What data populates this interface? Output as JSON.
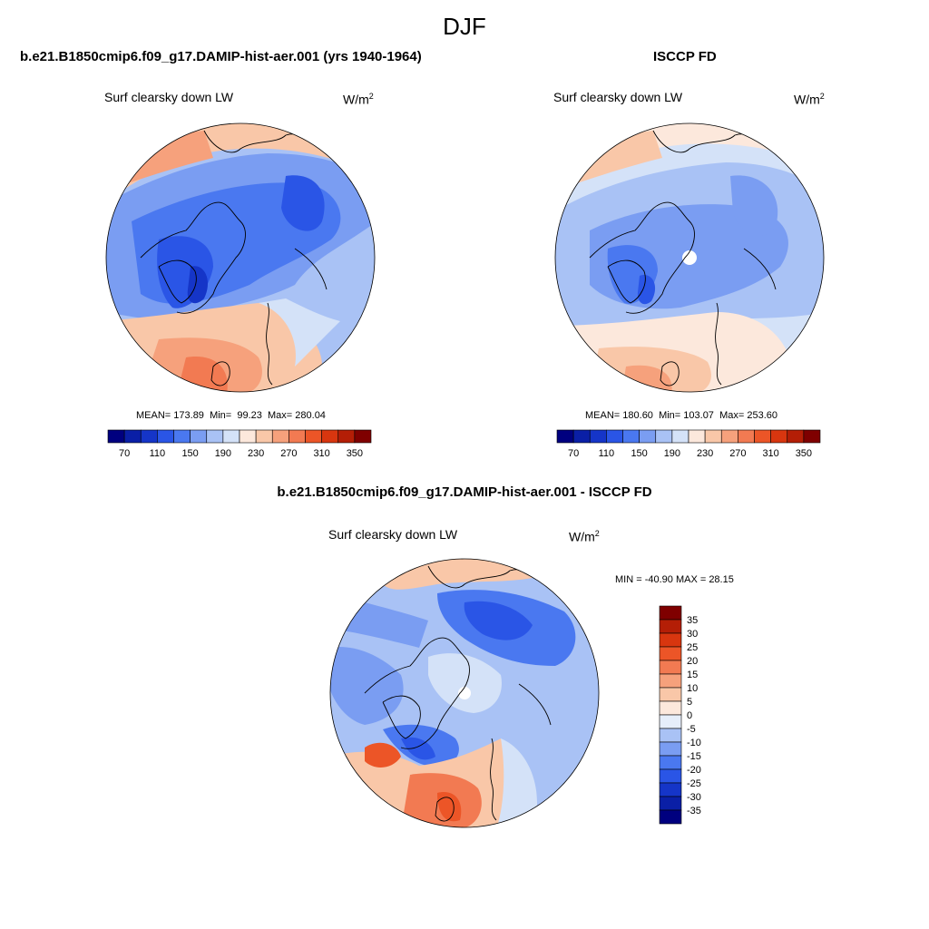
{
  "page_title": "DJF",
  "panels": [
    {
      "title": "b.e21.B1850cmip6.f09_g17.DAMIP-hist-aer.001 (yrs 1940-1964)",
      "variable": "Surf clearsky down LW",
      "units_base": "W/m",
      "units_exp": "2",
      "stats": {
        "mean_label": "MEAN=",
        "mean": "173.89",
        "min_label": "Min=",
        "min": "99.23",
        "max_label": "Max=",
        "max": "280.04"
      }
    },
    {
      "title": "ISCCP FD",
      "variable": "Surf clearsky down LW",
      "units_base": "W/m",
      "units_exp": "2",
      "stats": {
        "mean_label": "MEAN=",
        "mean": "180.60",
        "min_label": "Min=",
        "min": "103.07",
        "max_label": "Max=",
        "max": "253.60"
      }
    },
    {
      "title": "b.e21.B1850cmip6.f09_g17.DAMIP-hist-aer.001 - ISCCP FD",
      "variable": "Surf clearsky down LW",
      "units_base": "W/m",
      "units_exp": "2",
      "stats_text": "MIN = -40.90 MAX =  28.15"
    }
  ],
  "colorbar_abs": {
    "colors": [
      "#00007f",
      "#0a1fa6",
      "#1535c8",
      "#2a55e6",
      "#4a78f0",
      "#7a9df2",
      "#a9c2f5",
      "#d4e2f8",
      "#fce8dc",
      "#f9c7a8",
      "#f6a17c",
      "#f27a52",
      "#ec5527",
      "#d8360f",
      "#b41e06",
      "#7f0000"
    ],
    "labels": [
      "70",
      "110",
      "150",
      "190",
      "230",
      "270",
      "310",
      "350"
    ]
  },
  "colorbar_diff": {
    "colors": [
      "#00007f",
      "#0a1fa6",
      "#1535c8",
      "#2a55e6",
      "#4a78f0",
      "#7a9df2",
      "#a9c2f5",
      "#e6eefa",
      "#fce8dc",
      "#f9c7a8",
      "#f6a17c",
      "#f27a52",
      "#ec5527",
      "#d8360f",
      "#b41e06",
      "#7f0000"
    ],
    "labels": [
      "-35",
      "-30",
      "-25",
      "-20",
      "-15",
      "-10",
      "-5",
      "0",
      "5",
      "10",
      "15",
      "20",
      "25",
      "30",
      "35"
    ]
  }
}
